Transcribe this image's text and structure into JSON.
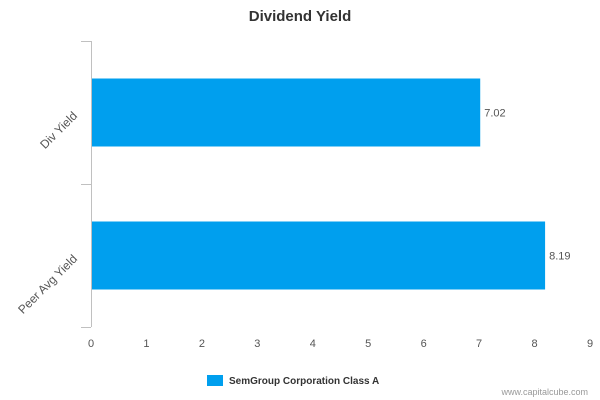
{
  "chart_data": {
    "type": "bar",
    "orientation": "horizontal",
    "title": "Dividend Yield",
    "categories": [
      "Div Yield",
      "Peer Avg Yield"
    ],
    "series": [
      {
        "name": "SemGroup Corporation Class A",
        "values": [
          7.02,
          8.19
        ],
        "value_labels": [
          "7.02",
          "8.19"
        ]
      }
    ],
    "xlim": [
      0,
      9
    ],
    "x_ticks": [
      "0",
      "1",
      "2",
      "3",
      "4",
      "5",
      "6",
      "7",
      "8",
      "9"
    ],
    "grid": false,
    "legend_position": "bottom-center",
    "xlabel": "",
    "ylabel": ""
  },
  "colors": {
    "bar": "#009FEE",
    "axis": "#C0C0C0",
    "text": "#555555",
    "title": "#333333",
    "watermark": "#999999"
  },
  "watermark": "www.capitalcube.com"
}
